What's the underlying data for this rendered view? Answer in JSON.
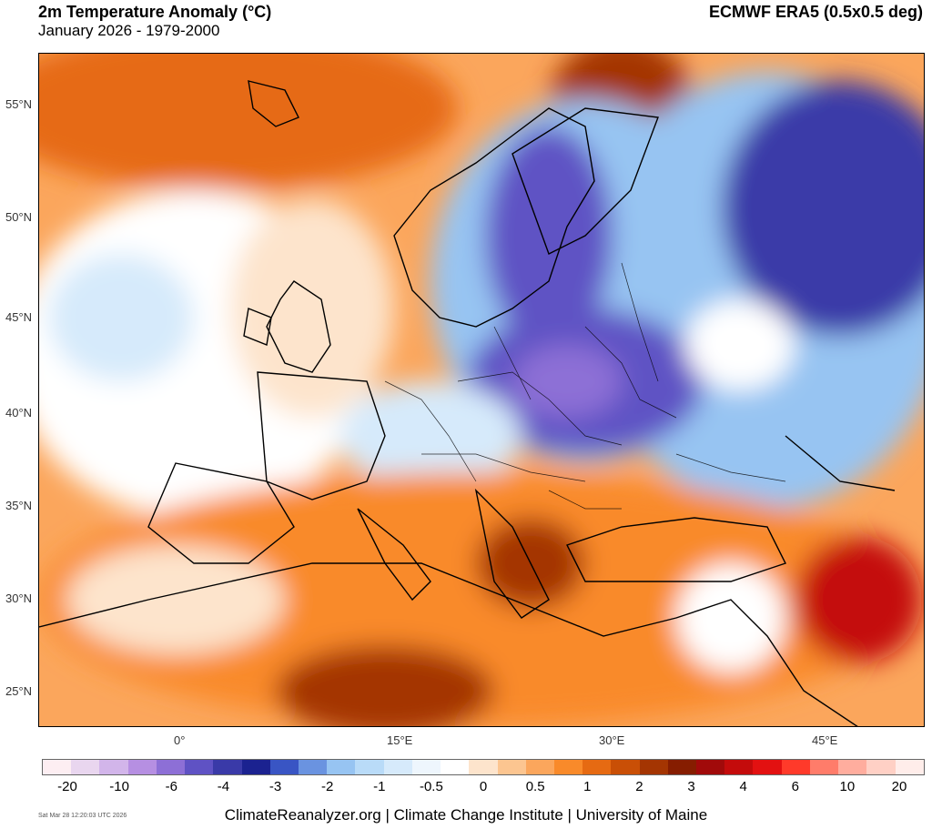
{
  "header": {
    "title": "2m Temperature Anomaly (°C)",
    "subtitle": "January 2026 - 1979-2000",
    "dataset": "ECMWF ERA5 (0.5x0.5 deg)"
  },
  "axes": {
    "lat_labels": [
      "55°N",
      "50°N",
      "45°N",
      "40°N",
      "35°N",
      "30°N",
      "25°N"
    ],
    "lon_labels": [
      "0°",
      "15°E",
      "30°E",
      "45°E"
    ]
  },
  "legend": {
    "ticks": [
      "-20",
      "-10",
      "-6",
      "-4",
      "-3",
      "-2",
      "-1",
      "-0.5",
      "0",
      "0.5",
      "1",
      "2",
      "3",
      "4",
      "6",
      "10",
      "20"
    ],
    "colors": [
      "#fdeef2",
      "#e9d6ef",
      "#d2b5ea",
      "#b68fe2",
      "#8d6fd6",
      "#5f52c4",
      "#3a3aa8",
      "#1b2290",
      "#3955c4",
      "#6a93e0",
      "#97c4f2",
      "#b9dbf8",
      "#d6eafb",
      "#eef6fd",
      "#ffffff",
      "#fde4cc",
      "#fcc590",
      "#fba65c",
      "#f98a2a",
      "#e66a12",
      "#c94f06",
      "#a43502",
      "#861d00",
      "#a10a0a",
      "#c40b0b",
      "#e31111",
      "#ff3a2a",
      "#ff7c6a",
      "#ffad9e",
      "#ffd0c5",
      "#ffedea"
    ]
  },
  "footer": {
    "credit": "ClimateReanalyzer.org | Climate Change Institute | University of Maine",
    "timestamp": "Sat Mar 28 12:20:03 UTC 2026"
  }
}
